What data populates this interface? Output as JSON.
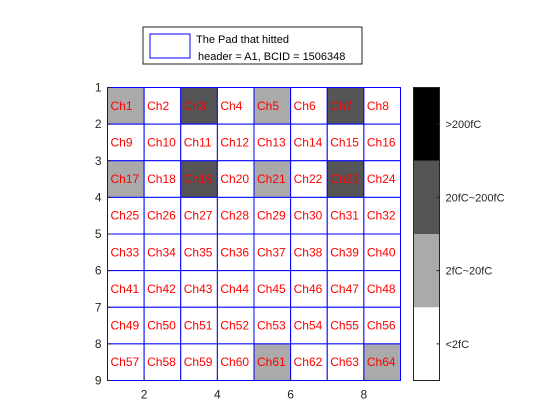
{
  "chart_data": {
    "type": "heatmap",
    "title": "",
    "xlabel": "",
    "ylabel": "",
    "xlim": [
      1,
      9
    ],
    "ylim": [
      1,
      9
    ],
    "y_reversed": true,
    "x_ticks": [
      2,
      4,
      6,
      8
    ],
    "y_ticks": [
      1,
      2,
      3,
      4,
      5,
      6,
      7,
      8,
      9
    ],
    "grid_rows": 8,
    "grid_cols": 8,
    "cell_labels": [
      "Ch1",
      "Ch2",
      "Ch3",
      "Ch4",
      "Ch5",
      "Ch6",
      "Ch7",
      "Ch8",
      "Ch9",
      "Ch10",
      "Ch11",
      "Ch12",
      "Ch13",
      "Ch14",
      "Ch15",
      "Ch16",
      "Ch17",
      "Ch18",
      "Ch19",
      "Ch20",
      "Ch21",
      "Ch22",
      "Ch23",
      "Ch24",
      "Ch25",
      "Ch26",
      "Ch27",
      "Ch28",
      "Ch29",
      "Ch30",
      "Ch31",
      "Ch32",
      "Ch33",
      "Ch34",
      "Ch35",
      "Ch36",
      "Ch37",
      "Ch38",
      "Ch39",
      "Ch40",
      "Ch41",
      "Ch42",
      "Ch43",
      "Ch44",
      "Ch45",
      "Ch46",
      "Ch47",
      "Ch48",
      "Ch49",
      "Ch50",
      "Ch51",
      "Ch52",
      "Ch53",
      "Ch54",
      "Ch55",
      "Ch56",
      "Ch57",
      "Ch58",
      "Ch59",
      "Ch60",
      "Ch61",
      "Ch62",
      "Ch63",
      "Ch64"
    ],
    "levels": [
      [
        1,
        0,
        2,
        0,
        1,
        0,
        2,
        0
      ],
      [
        0,
        0,
        0,
        0,
        0,
        0,
        0,
        0
      ],
      [
        1,
        0,
        2,
        0,
        1,
        0,
        2,
        0
      ],
      [
        0,
        0,
        0,
        0,
        0,
        0,
        0,
        0
      ],
      [
        0,
        0,
        0,
        0,
        0,
        0,
        0,
        0
      ],
      [
        0,
        0,
        0,
        0,
        0,
        0,
        0,
        0
      ],
      [
        0,
        0,
        0,
        0,
        0,
        0,
        0,
        0
      ],
      [
        0,
        0,
        0,
        0,
        1,
        0,
        0,
        1
      ]
    ],
    "level_labels": [
      "<2fC",
      "2fC~20fC",
      "20fC~200fC",
      ">200fC"
    ],
    "level_colors": [
      "#ffffff",
      "#aaaaaa",
      "#555555",
      "#000000"
    ],
    "grid_color": "#0000ff",
    "label_color": "#ff0000",
    "legend": {
      "title": "The Pad that hitted",
      "subtitle": "header = A1, BCID = 1506348",
      "placement": "top"
    }
  }
}
